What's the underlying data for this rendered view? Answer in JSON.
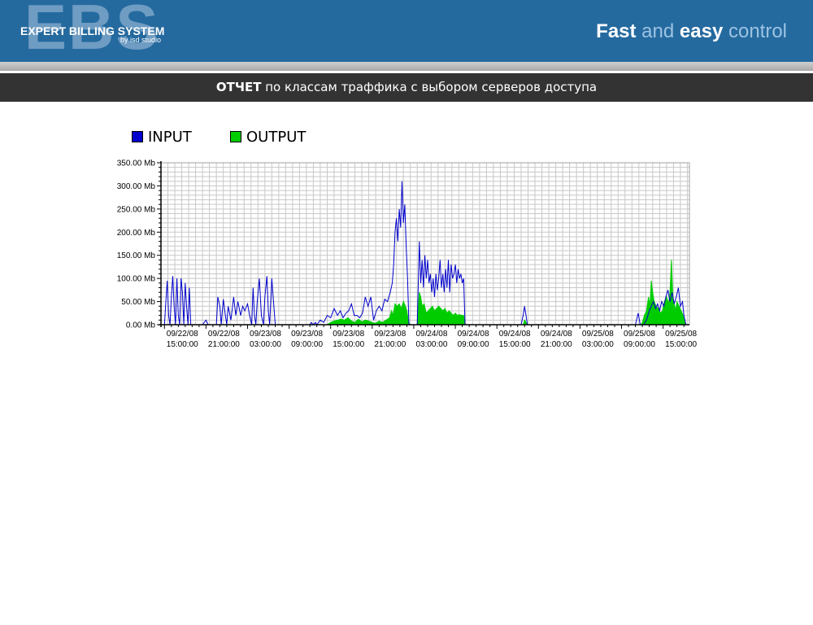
{
  "header": {
    "logo_watermark": "EBS",
    "logo_title": "EXPERT BILLING SYSTEM",
    "logo_subtitle": "by isd studio",
    "tagline": {
      "w1": "Fast",
      "w2": " and ",
      "w3": "easy",
      "w4": " control"
    }
  },
  "report": {
    "title_bold": "ОТЧЕТ",
    "title_rest": " по классам траффика с выбором серверов доступа"
  },
  "chart_data": {
    "type": "area",
    "title": "",
    "xlabel": "",
    "ylabel": "",
    "ylim": [
      0,
      350
    ],
    "y_ticks": [
      "0.00 Mb",
      "50.00 Mb",
      "100.00 Mb",
      "150.00 Mb",
      "200.00 Mb",
      "250.00 Mb",
      "300.00 Mb",
      "350.00 Mb"
    ],
    "x_ticks": [
      [
        "09/22/08",
        "15:00:00"
      ],
      [
        "09/22/08",
        "21:00:00"
      ],
      [
        "09/23/08",
        "03:00:00"
      ],
      [
        "09/23/08",
        "09:00:00"
      ],
      [
        "09/23/08",
        "15:00:00"
      ],
      [
        "09/23/08",
        "21:00:00"
      ],
      [
        "09/24/08",
        "03:00:00"
      ],
      [
        "09/24/08",
        "09:00:00"
      ],
      [
        "09/24/08",
        "15:00:00"
      ],
      [
        "09/24/08",
        "21:00:00"
      ],
      [
        "09/25/08",
        "03:00:00"
      ],
      [
        "09/25/08",
        "09:00:00"
      ],
      [
        "09/25/08",
        "15:00:00"
      ]
    ],
    "x_range_hours": [
      -0.5,
      75.8
    ],
    "grid": true,
    "legend_position": "top-left",
    "series": [
      {
        "name": "INPUT",
        "color": "#0000cc",
        "points": [
          [
            0,
            0
          ],
          [
            0.2,
            50
          ],
          [
            0.4,
            95
          ],
          [
            0.6,
            20
          ],
          [
            0.8,
            0
          ],
          [
            1.0,
            60
          ],
          [
            1.2,
            105
          ],
          [
            1.4,
            40
          ],
          [
            1.6,
            0
          ],
          [
            1.8,
            100
          ],
          [
            2.0,
            20
          ],
          [
            2.2,
            0
          ],
          [
            2.4,
            100
          ],
          [
            2.6,
            70
          ],
          [
            2.8,
            0
          ],
          [
            3.0,
            90
          ],
          [
            3.2,
            40
          ],
          [
            3.4,
            0
          ],
          [
            3.6,
            80
          ],
          [
            3.8,
            0
          ],
          [
            4.0,
            0
          ],
          [
            5.5,
            0
          ],
          [
            6.0,
            10
          ],
          [
            6.3,
            0
          ],
          [
            7.5,
            0
          ],
          [
            7.7,
            60
          ],
          [
            8.0,
            40
          ],
          [
            8.2,
            0
          ],
          [
            8.5,
            55
          ],
          [
            8.8,
            20
          ],
          [
            9.0,
            0
          ],
          [
            9.2,
            40
          ],
          [
            9.6,
            10
          ],
          [
            10.0,
            60
          ],
          [
            10.3,
            20
          ],
          [
            10.6,
            50
          ],
          [
            11.0,
            20
          ],
          [
            11.3,
            40
          ],
          [
            11.6,
            30
          ],
          [
            12.0,
            45
          ],
          [
            12.3,
            20
          ],
          [
            12.6,
            0
          ],
          [
            12.8,
            80
          ],
          [
            13.0,
            20
          ],
          [
            13.2,
            0
          ],
          [
            13.4,
            50
          ],
          [
            13.7,
            100
          ],
          [
            14.0,
            20
          ],
          [
            14.3,
            0
          ],
          [
            14.5,
            60
          ],
          [
            14.8,
            105
          ],
          [
            15.0,
            30
          ],
          [
            15.2,
            0
          ],
          [
            15.5,
            100
          ],
          [
            15.7,
            60
          ],
          [
            16.0,
            0
          ],
          [
            16.2,
            0
          ],
          [
            21.0,
            0
          ],
          [
            21.2,
            5
          ],
          [
            21.5,
            0
          ],
          [
            21.8,
            5
          ],
          [
            22.0,
            0
          ],
          [
            22.5,
            10
          ],
          [
            23.0,
            5
          ],
          [
            23.5,
            20
          ],
          [
            24.0,
            15
          ],
          [
            24.5,
            35
          ],
          [
            25.0,
            20
          ],
          [
            25.4,
            30
          ],
          [
            25.8,
            15
          ],
          [
            26.2,
            25
          ],
          [
            26.6,
            30
          ],
          [
            27.0,
            45
          ],
          [
            27.4,
            20
          ],
          [
            27.8,
            20
          ],
          [
            28.2,
            15
          ],
          [
            28.6,
            25
          ],
          [
            29.0,
            60
          ],
          [
            29.4,
            40
          ],
          [
            29.8,
            60
          ],
          [
            30.2,
            10
          ],
          [
            30.6,
            30
          ],
          [
            31.0,
            40
          ],
          [
            31.4,
            30
          ],
          [
            31.8,
            55
          ],
          [
            32.2,
            50
          ],
          [
            32.6,
            70
          ],
          [
            32.9,
            90
          ],
          [
            33.1,
            130
          ],
          [
            33.3,
            200
          ],
          [
            33.5,
            230
          ],
          [
            33.7,
            180
          ],
          [
            33.9,
            250
          ],
          [
            34.1,
            210
          ],
          [
            34.3,
            310
          ],
          [
            34.5,
            220
          ],
          [
            34.7,
            260
          ],
          [
            34.9,
            170
          ],
          [
            35.1,
            100
          ],
          [
            35.3,
            0
          ],
          [
            35.5,
            0
          ],
          [
            36.0,
            0
          ],
          [
            36.5,
            0
          ],
          [
            36.8,
            180
          ],
          [
            37.0,
            90
          ],
          [
            37.2,
            140
          ],
          [
            37.4,
            80
          ],
          [
            37.6,
            150
          ],
          [
            37.8,
            100
          ],
          [
            38.0,
            140
          ],
          [
            38.2,
            90
          ],
          [
            38.4,
            110
          ],
          [
            38.6,
            70
          ],
          [
            38.8,
            100
          ],
          [
            39.0,
            60
          ],
          [
            39.2,
            110
          ],
          [
            39.4,
            75
          ],
          [
            39.6,
            100
          ],
          [
            39.8,
            140
          ],
          [
            40.0,
            80
          ],
          [
            40.2,
            110
          ],
          [
            40.4,
            70
          ],
          [
            40.6,
            120
          ],
          [
            40.8,
            80
          ],
          [
            41.0,
            140
          ],
          [
            41.2,
            70
          ],
          [
            41.4,
            130
          ],
          [
            41.6,
            100
          ],
          [
            41.8,
            110
          ],
          [
            42.0,
            130
          ],
          [
            42.2,
            90
          ],
          [
            42.4,
            120
          ],
          [
            42.6,
            100
          ],
          [
            42.8,
            110
          ],
          [
            43.0,
            90
          ],
          [
            43.2,
            100
          ],
          [
            43.4,
            0
          ],
          [
            43.6,
            0
          ],
          [
            51.5,
            0
          ],
          [
            51.8,
            20
          ],
          [
            52.0,
            40
          ],
          [
            52.2,
            20
          ],
          [
            52.4,
            0
          ],
          [
            52.6,
            0
          ],
          [
            68.0,
            0
          ],
          [
            68.4,
            25
          ],
          [
            68.7,
            0
          ],
          [
            69.2,
            0
          ],
          [
            69.6,
            10
          ],
          [
            70.0,
            30
          ],
          [
            70.3,
            40
          ],
          [
            70.6,
            50
          ],
          [
            70.9,
            35
          ],
          [
            71.2,
            45
          ],
          [
            71.5,
            30
          ],
          [
            71.8,
            50
          ],
          [
            72.1,
            40
          ],
          [
            72.4,
            60
          ],
          [
            72.7,
            75
          ],
          [
            73.0,
            50
          ],
          [
            73.3,
            70
          ],
          [
            73.6,
            45
          ],
          [
            73.9,
            60
          ],
          [
            74.2,
            80
          ],
          [
            74.5,
            40
          ],
          [
            74.8,
            50
          ],
          [
            75.0,
            20
          ],
          [
            75.3,
            0
          ]
        ]
      },
      {
        "name": "OUTPUT",
        "color": "#00cc00",
        "points": [
          [
            23.5,
            0
          ],
          [
            24.0,
            5
          ],
          [
            24.5,
            8
          ],
          [
            25.0,
            10
          ],
          [
            25.5,
            12
          ],
          [
            26.0,
            10
          ],
          [
            26.5,
            15
          ],
          [
            27.0,
            8
          ],
          [
            27.5,
            5
          ],
          [
            28.0,
            12
          ],
          [
            28.5,
            6
          ],
          [
            29.0,
            10
          ],
          [
            29.5,
            8
          ],
          [
            30.0,
            5
          ],
          [
            30.5,
            3
          ],
          [
            31.0,
            8
          ],
          [
            31.5,
            5
          ],
          [
            32.0,
            10
          ],
          [
            32.5,
            15
          ],
          [
            32.8,
            30
          ],
          [
            33.0,
            20
          ],
          [
            33.3,
            45
          ],
          [
            33.6,
            40
          ],
          [
            33.9,
            45
          ],
          [
            34.2,
            35
          ],
          [
            34.5,
            50
          ],
          [
            34.8,
            40
          ],
          [
            35.0,
            30
          ],
          [
            35.2,
            10
          ],
          [
            35.4,
            0
          ],
          [
            36.5,
            0
          ],
          [
            36.8,
            70
          ],
          [
            37.0,
            60
          ],
          [
            37.2,
            40
          ],
          [
            37.5,
            45
          ],
          [
            37.8,
            25
          ],
          [
            38.1,
            30
          ],
          [
            38.4,
            35
          ],
          [
            38.7,
            40
          ],
          [
            39.0,
            30
          ],
          [
            39.3,
            35
          ],
          [
            39.6,
            40
          ],
          [
            39.9,
            35
          ],
          [
            40.2,
            30
          ],
          [
            40.5,
            35
          ],
          [
            40.8,
            25
          ],
          [
            41.1,
            30
          ],
          [
            41.4,
            25
          ],
          [
            41.7,
            20
          ],
          [
            42.0,
            25
          ],
          [
            42.3,
            20
          ],
          [
            42.6,
            22
          ],
          [
            42.9,
            20
          ],
          [
            43.2,
            20
          ],
          [
            43.4,
            0
          ],
          [
            51.8,
            0
          ],
          [
            52.0,
            10
          ],
          [
            52.2,
            5
          ],
          [
            52.4,
            0
          ],
          [
            68.8,
            0
          ],
          [
            69.0,
            5
          ],
          [
            69.3,
            20
          ],
          [
            69.6,
            30
          ],
          [
            69.9,
            60
          ],
          [
            70.1,
            40
          ],
          [
            70.3,
            95
          ],
          [
            70.5,
            70
          ],
          [
            70.7,
            50
          ],
          [
            71.0,
            40
          ],
          [
            71.3,
            35
          ],
          [
            71.6,
            25
          ],
          [
            71.9,
            30
          ],
          [
            72.2,
            50
          ],
          [
            72.5,
            60
          ],
          [
            72.8,
            45
          ],
          [
            73.0,
            70
          ],
          [
            73.2,
            140
          ],
          [
            73.4,
            60
          ],
          [
            73.6,
            45
          ],
          [
            73.8,
            30
          ],
          [
            74.0,
            50
          ],
          [
            74.3,
            40
          ],
          [
            74.6,
            30
          ],
          [
            74.9,
            20
          ],
          [
            75.2,
            0
          ]
        ]
      }
    ]
  }
}
